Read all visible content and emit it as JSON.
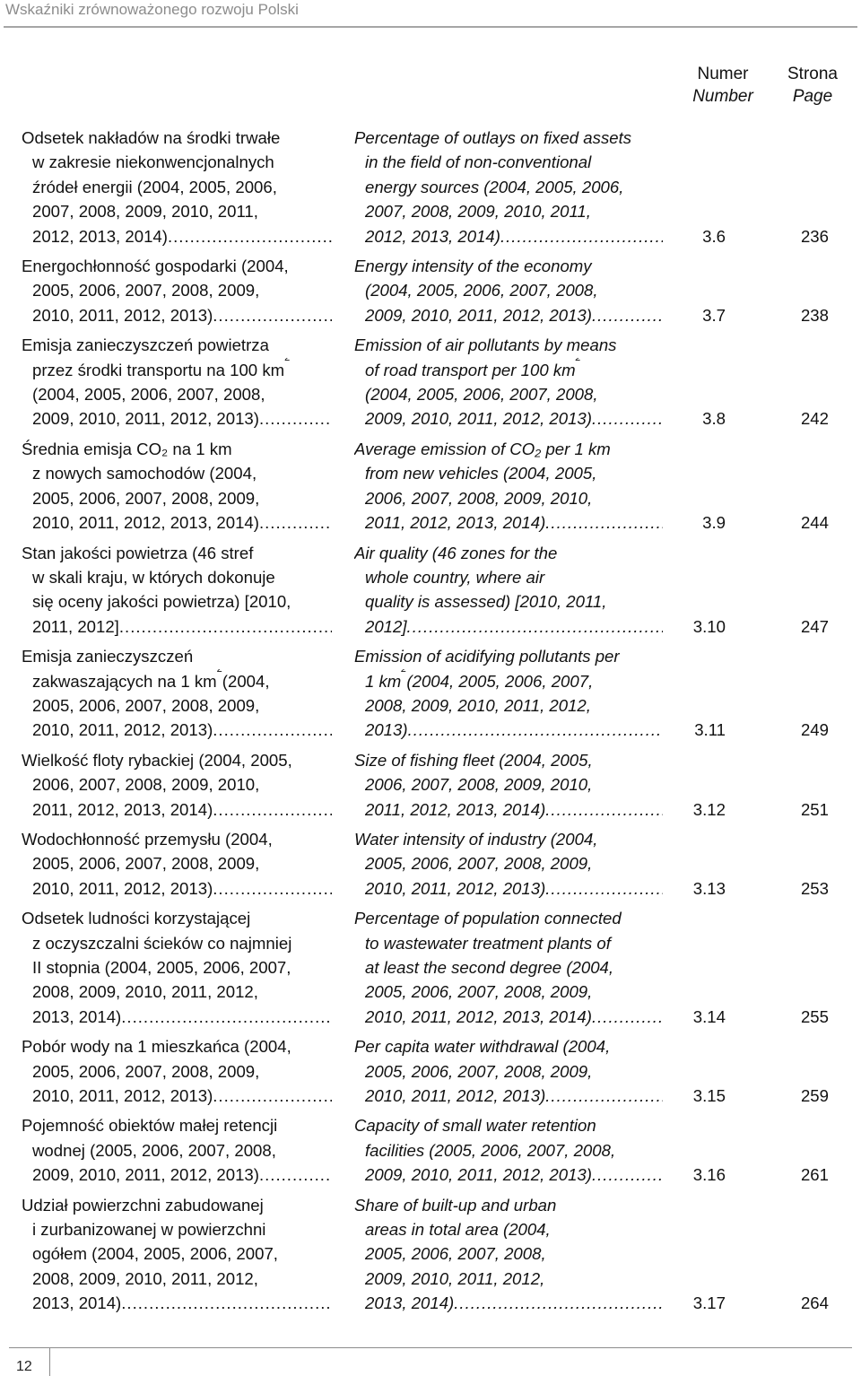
{
  "header": {
    "title": "Wskaźniki zrównoważonego rozwoju Polski"
  },
  "columns": {
    "number_pl": "Numer",
    "number_en": "Number",
    "page_pl": "Strona",
    "page_en": "Page"
  },
  "entries": [
    {
      "pl": [
        "Odsetek nakładów na środki trwałe",
        "w zakresie niekonwencjonalnych",
        "źródeł energii (2004, 2005, 2006,",
        "2007, 2008, 2009, 2010, 2011,",
        "2012, 2013, 2014)"
      ],
      "en": [
        "Percentage of outlays on fixed assets",
        "in the field of non-conventional",
        "energy sources (2004, 2005, 2006,",
        "2007, 2008, 2009, 2010, 2011,",
        "2012, 2013, 2014)"
      ],
      "number": "3.6",
      "page": "236"
    },
    {
      "pl": [
        "Energochłonność gospodarki (2004,",
        "2005, 2006, 2007, 2008, 2009,",
        "2010, 2011, 2012, 2013)"
      ],
      "en": [
        "Energy intensity of the economy",
        "(2004, 2005, 2006, 2007, 2008,",
        "2009, 2010, 2011, 2012, 2013)"
      ],
      "number": "3.7",
      "page": "238"
    },
    {
      "pl": [
        "Emisja zanieczyszczeń powietrza",
        "przez środki transportu na 100 km",
        "(2004, 2005, 2006, 2007, 2008,",
        "2009, 2010, 2011, 2012, 2013)"
      ],
      "en": [
        "Emission of air pollutants by means",
        "of road transport per 100 km",
        "(2004, 2005, 2006, 2007, 2008,",
        "2009, 2010, 2011, 2012, 2013)"
      ],
      "sup": "2",
      "number": "3.8",
      "page": "242"
    },
    {
      "pl": [
        "Średnia emisja CO₂ na 1 km",
        "z nowych samochodów (2004,",
        "2005, 2006, 2007, 2008, 2009,",
        "2010, 2011, 2012, 2013, 2014)"
      ],
      "en": [
        "Average emission of CO₂ per 1 km",
        "from new vehicles (2004, 2005,",
        "2006, 2007, 2008, 2009, 2010,",
        "2011, 2012, 2013, 2014)"
      ],
      "number": "3.9",
      "page": "244"
    },
    {
      "pl": [
        "Stan jakości powietrza (46 stref",
        "w skali kraju, w których dokonuje",
        "się oceny jakości powietrza) [2010,",
        "2011, 2012]"
      ],
      "en": [
        "Air quality (46 zones for the",
        "whole country, where air",
        "quality is assessed) [2010, 2011,",
        "2012]"
      ],
      "number": "3.10",
      "page": "247"
    },
    {
      "pl": [
        "Emisja zanieczyszczeń",
        "zakwaszających na 1 km",
        "2005, 2006, 2007, 2008, 2009,",
        "2010, 2011, 2012, 2013)"
      ],
      "pl_tail": " (2004,",
      "en": [
        "Emission of acidifying pollutants per",
        "1 km",
        "2008, 2009, 2010, 2011, 2012,",
        "2013)"
      ],
      "en_tail": " (2004, 2005, 2006, 2007,",
      "sup": "2",
      "number": "3.11",
      "page": "249"
    },
    {
      "pl": [
        "Wielkość floty rybackiej (2004, 2005,",
        "2006, 2007, 2008, 2009, 2010,",
        "2011, 2012, 2013, 2014)"
      ],
      "en": [
        "Size of fishing fleet (2004, 2005,",
        "2006, 2007, 2008, 2009, 2010,",
        "2011, 2012, 2013, 2014)"
      ],
      "number": "3.12",
      "page": "251"
    },
    {
      "pl": [
        "Wodochłonność przemysłu (2004,",
        "2005, 2006, 2007, 2008, 2009,",
        "2010, 2011, 2012, 2013)"
      ],
      "en": [
        "Water intensity of industry (2004,",
        "2005, 2006, 2007, 2008, 2009,",
        "2010, 2011, 2012, 2013)"
      ],
      "number": "3.13",
      "page": "253"
    },
    {
      "pl": [
        "Odsetek ludności korzystającej",
        "z oczyszczalni ścieków co najmniej",
        "II stopnia (2004, 2005, 2006, 2007,",
        "2008, 2009, 2010, 2011, 2012,",
        "2013, 2014)"
      ],
      "en": [
        "Percentage of population connected",
        "to wastewater treatment plants of",
        "at least the second degree (2004,",
        "2005, 2006, 2007, 2008, 2009,",
        "2010, 2011, 2012, 2013, 2014)"
      ],
      "number": "3.14",
      "page": "255"
    },
    {
      "pl": [
        "Pobór wody na 1 mieszkańca (2004,",
        "2005, 2006, 2007, 2008, 2009,",
        "2010, 2011, 2012, 2013)"
      ],
      "en": [
        "Per capita water withdrawal (2004,",
        "2005, 2006, 2007, 2008, 2009,",
        "2010, 2011, 2012, 2013)"
      ],
      "number": "3.15",
      "page": "259"
    },
    {
      "pl": [
        "Pojemność obiektów małej retencji",
        "wodnej (2005, 2006, 2007, 2008,",
        "2009, 2010, 2011, 2012, 2013)"
      ],
      "en": [
        "Capacity of small water retention",
        "facilities (2005, 2006, 2007, 2008,",
        "2009, 2010, 2011, 2012, 2013)"
      ],
      "number": "3.16",
      "page": "261"
    },
    {
      "pl": [
        "Udział powierzchni zabudowanej",
        "i zurbanizowanej w powierzchni",
        "ogółem (2004, 2005, 2006, 2007,",
        "2008, 2009, 2010, 2011, 2012,",
        "2013, 2014)"
      ],
      "en": [
        "Share of built-up and urban",
        "areas in total area (2004,",
        "2005, 2006, 2007, 2008,",
        "2009, 2010, 2011, 2012,",
        "2013, 2014)"
      ],
      "number": "3.17",
      "page": "264"
    }
  ],
  "footer": {
    "page_number": "12"
  }
}
